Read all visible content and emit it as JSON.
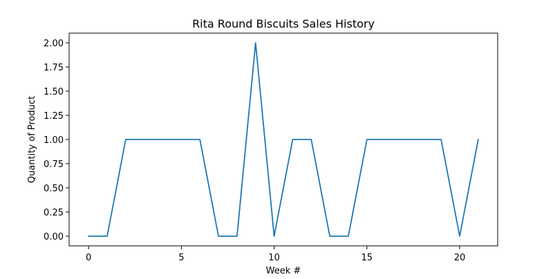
{
  "chart_data": {
    "type": "line",
    "title": "Rita Round Biscuits Sales History",
    "xlabel": "Week #",
    "ylabel": "Quantity of Product",
    "xlim": [
      -1.05,
      22.05
    ],
    "ylim": [
      -0.1,
      2.1
    ],
    "xticks": [
      0,
      5,
      10,
      15,
      20
    ],
    "xtick_labels": [
      "0",
      "5",
      "10",
      "15",
      "20"
    ],
    "yticks": [
      0,
      0.25,
      0.5,
      0.75,
      1.0,
      1.25,
      1.5,
      1.75,
      2.0
    ],
    "ytick_labels": [
      "0.00",
      "0.25",
      "0.50",
      "0.75",
      "1.00",
      "1.25",
      "1.50",
      "1.75",
      "2.00"
    ],
    "grid": false,
    "legend": "none",
    "series": [
      {
        "color": "#1f77b4",
        "x": [
          0,
          1,
          2,
          3,
          4,
          5,
          6,
          7,
          8,
          9,
          10,
          11,
          12,
          13,
          14,
          15,
          16,
          17,
          18,
          19,
          20,
          21
        ],
        "y": [
          0,
          0,
          1,
          1,
          1,
          1,
          1,
          0,
          0,
          2,
          0,
          1,
          1,
          0,
          0,
          1,
          1,
          1,
          1,
          1,
          0,
          1
        ]
      }
    ]
  }
}
